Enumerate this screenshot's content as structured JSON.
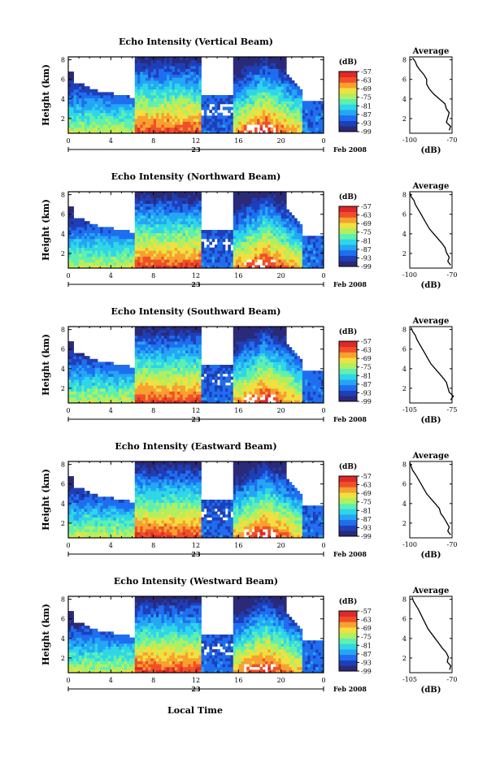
{
  "figure": {
    "x_axis_title": "Local Time",
    "date_label": "Feb 2008",
    "colorbar_unit": "(dB)",
    "avg_title": "Average",
    "avg_xlabel": "(dB)",
    "y_axis_title": "Height (km)"
  },
  "chart_data": [
    {
      "type": "heatmap",
      "title": "Echo Intensity (Vertical Beam)",
      "xlabel": "",
      "ylabel": "Height (km)",
      "x_ticks": [
        "0",
        "4",
        "8",
        "12",
        "16",
        "20",
        "0"
      ],
      "x_range_hours": [
        0,
        24
      ],
      "day_label": "23",
      "y_ticks": [
        "2",
        "4",
        "6",
        "8"
      ],
      "y_range_km": [
        0.5,
        8.3
      ],
      "colorbar_ticks": [
        "-57",
        "-63",
        "-69",
        "-75",
        "-81",
        "-87",
        "-93",
        "-99"
      ],
      "colorbar_range_db": [
        -99,
        -57
      ],
      "avg_profile": {
        "title": "Average",
        "xlabel": "(dB)",
        "x_ticks": [
          "-100",
          "-70"
        ],
        "x_range": [
          -100,
          -70
        ],
        "x": [
          -72,
          -71,
          -74,
          -73,
          -72,
          -74,
          -75,
          -79,
          -83,
          -86,
          -88,
          -88,
          -90,
          -93,
          -95,
          -96,
          -98
        ],
        "y": [
          0.8,
          1.2,
          1.6,
          2.1,
          2.6,
          3.0,
          3.5,
          4.0,
          4.5,
          5.0,
          5.5,
          6.0,
          6.5,
          7.0,
          7.4,
          7.8,
          8.2
        ]
      }
    },
    {
      "type": "heatmap",
      "title": "Echo Intensity (Northward Beam)",
      "xlabel": "",
      "ylabel": "Height (km)",
      "x_ticks": [
        "0",
        "4",
        "8",
        "12",
        "16",
        "20",
        "0"
      ],
      "x_range_hours": [
        0,
        24
      ],
      "day_label": "23",
      "y_ticks": [
        "2",
        "4",
        "6",
        "8"
      ],
      "y_range_km": [
        0.5,
        8.3
      ],
      "colorbar_ticks": [
        "-57",
        "-63",
        "-69",
        "-75",
        "-81",
        "-87",
        "-93",
        "-99"
      ],
      "colorbar_range_db": [
        -99,
        -57
      ],
      "avg_profile": {
        "title": "Average",
        "xlabel": "(dB)",
        "x_ticks": [
          "-100",
          "-70"
        ],
        "x_range": [
          -100,
          -70
        ],
        "x": [
          -71,
          -73,
          -72,
          -74,
          -75,
          -77,
          -80,
          -83,
          -86,
          -88,
          -90,
          -92,
          -94,
          -96,
          -97,
          -99,
          -100
        ],
        "y": [
          0.8,
          1.2,
          1.6,
          2.1,
          2.6,
          3.0,
          3.5,
          4.0,
          4.5,
          5.0,
          5.5,
          6.0,
          6.5,
          7.0,
          7.4,
          7.8,
          8.2
        ]
      }
    },
    {
      "type": "heatmap",
      "title": "Echo Intensity (Southward Beam)",
      "xlabel": "",
      "ylabel": "Height (km)",
      "x_ticks": [
        "0",
        "4",
        "8",
        "12",
        "16",
        "20",
        "0"
      ],
      "x_range_hours": [
        0,
        24
      ],
      "day_label": "23",
      "y_ticks": [
        "2",
        "4",
        "6",
        "8"
      ],
      "y_range_km": [
        0.5,
        8.3
      ],
      "colorbar_ticks": [
        "-57",
        "-63",
        "-69",
        "-75",
        "-81",
        "-87",
        "-93",
        "-99"
      ],
      "colorbar_range_db": [
        -99,
        -57
      ],
      "avg_profile": {
        "title": "Average",
        "xlabel": "(dB)",
        "x_ticks": [
          "-105",
          "-75"
        ],
        "x_range": [
          -105,
          -75
        ],
        "x": [
          -76,
          -74,
          -77,
          -78,
          -79,
          -81,
          -84,
          -87,
          -90,
          -92,
          -94,
          -96,
          -98,
          -100,
          -101,
          -103,
          -104
        ],
        "y": [
          0.8,
          1.2,
          1.6,
          2.1,
          2.6,
          3.0,
          3.5,
          4.0,
          4.5,
          5.0,
          5.5,
          6.0,
          6.5,
          7.0,
          7.4,
          7.8,
          8.2
        ]
      }
    },
    {
      "type": "heatmap",
      "title": "Echo Intensity (Eastward Beam)",
      "xlabel": "",
      "ylabel": "Height (km)",
      "x_ticks": [
        "0",
        "4",
        "8",
        "12",
        "16",
        "20",
        "0"
      ],
      "x_range_hours": [
        0,
        24
      ],
      "day_label": "23",
      "y_ticks": [
        "2",
        "4",
        "6",
        "8"
      ],
      "y_range_km": [
        0.5,
        8.3
      ],
      "colorbar_ticks": [
        "-57",
        "-63",
        "-69",
        "-75",
        "-81",
        "-87",
        "-93",
        "-99"
      ],
      "colorbar_range_db": [
        -99,
        -57
      ],
      "avg_profile": {
        "title": "Average",
        "xlabel": "(dB)",
        "x_ticks": [
          "-100",
          "-70"
        ],
        "x_range": [
          -100,
          -70
        ],
        "x": [
          -71,
          -73,
          -72,
          -74,
          -76,
          -78,
          -79,
          -82,
          -85,
          -88,
          -90,
          -92,
          -94,
          -96,
          -98,
          -99,
          -100
        ],
        "y": [
          0.8,
          1.2,
          1.6,
          2.1,
          2.6,
          3.0,
          3.5,
          4.0,
          4.5,
          5.0,
          5.5,
          6.0,
          6.5,
          7.0,
          7.4,
          7.8,
          8.2
        ]
      }
    },
    {
      "type": "heatmap",
      "title": "Echo Intensity (Westward Beam)",
      "xlabel": "Local Time",
      "ylabel": "Height (km)",
      "x_ticks": [
        "0",
        "4",
        "8",
        "12",
        "16",
        "20",
        "0"
      ],
      "x_range_hours": [
        0,
        24
      ],
      "day_label": "23",
      "y_ticks": [
        "2",
        "4",
        "6",
        "8"
      ],
      "y_range_km": [
        0.5,
        8.3
      ],
      "colorbar_ticks": [
        "-57",
        "-63",
        "-69",
        "-75",
        "-81",
        "-87",
        "-93",
        "-99"
      ],
      "colorbar_range_db": [
        -99,
        -57
      ],
      "avg_profile": {
        "title": "Average",
        "xlabel": "(dB)",
        "x_ticks": [
          "-105",
          "-70"
        ],
        "x_range": [
          -105,
          -70
        ],
        "x": [
          -72,
          -71,
          -74,
          -73,
          -75,
          -78,
          -81,
          -84,
          -87,
          -90,
          -92,
          -94,
          -96,
          -98,
          -100,
          -102,
          -103
        ],
        "y": [
          0.8,
          1.2,
          1.6,
          2.1,
          2.6,
          3.0,
          3.5,
          4.0,
          4.5,
          5.0,
          5.5,
          6.0,
          6.5,
          7.0,
          7.4,
          7.8,
          8.2
        ]
      }
    }
  ],
  "colors": {
    "colormap": [
      "#2a2a78",
      "#1f3fb8",
      "#1f6ef0",
      "#24a6f5",
      "#2fd6e8",
      "#5ff0b0",
      "#b0f060",
      "#f0e040",
      "#f8a030",
      "#f05028",
      "#e02828"
    ],
    "no_data": "#ffffff"
  }
}
